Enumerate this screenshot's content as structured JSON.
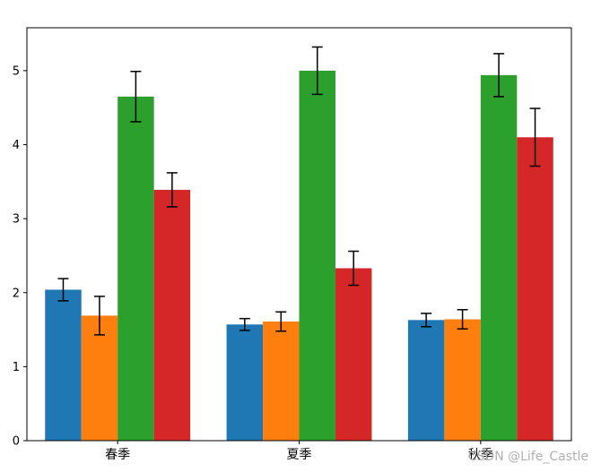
{
  "chart_data": {
    "type": "bar",
    "categories": [
      "春季",
      "夏季",
      "秋季"
    ],
    "series": [
      {
        "color": "#1f77b4",
        "values": [
          2.04,
          1.57,
          1.63
        ],
        "errors": [
          0.15,
          0.08,
          0.09
        ]
      },
      {
        "color": "#ff7f0e",
        "values": [
          1.69,
          1.61,
          1.64
        ],
        "errors": [
          0.26,
          0.13,
          0.13
        ]
      },
      {
        "color": "#2ca02c",
        "values": [
          4.65,
          5.0,
          4.94
        ],
        "errors": [
          0.34,
          0.32,
          0.29
        ]
      },
      {
        "color": "#d62728",
        "values": [
          3.39,
          2.33,
          4.1
        ],
        "errors": [
          0.23,
          0.23,
          0.39
        ]
      }
    ],
    "yticks": [
      0,
      1,
      2,
      3,
      4,
      5
    ],
    "ylim": [
      0,
      5.58
    ],
    "title": "",
    "xlabel": "",
    "ylabel": "",
    "grid": false,
    "legend": false
  },
  "watermark": "CSDN @Life_Castle"
}
